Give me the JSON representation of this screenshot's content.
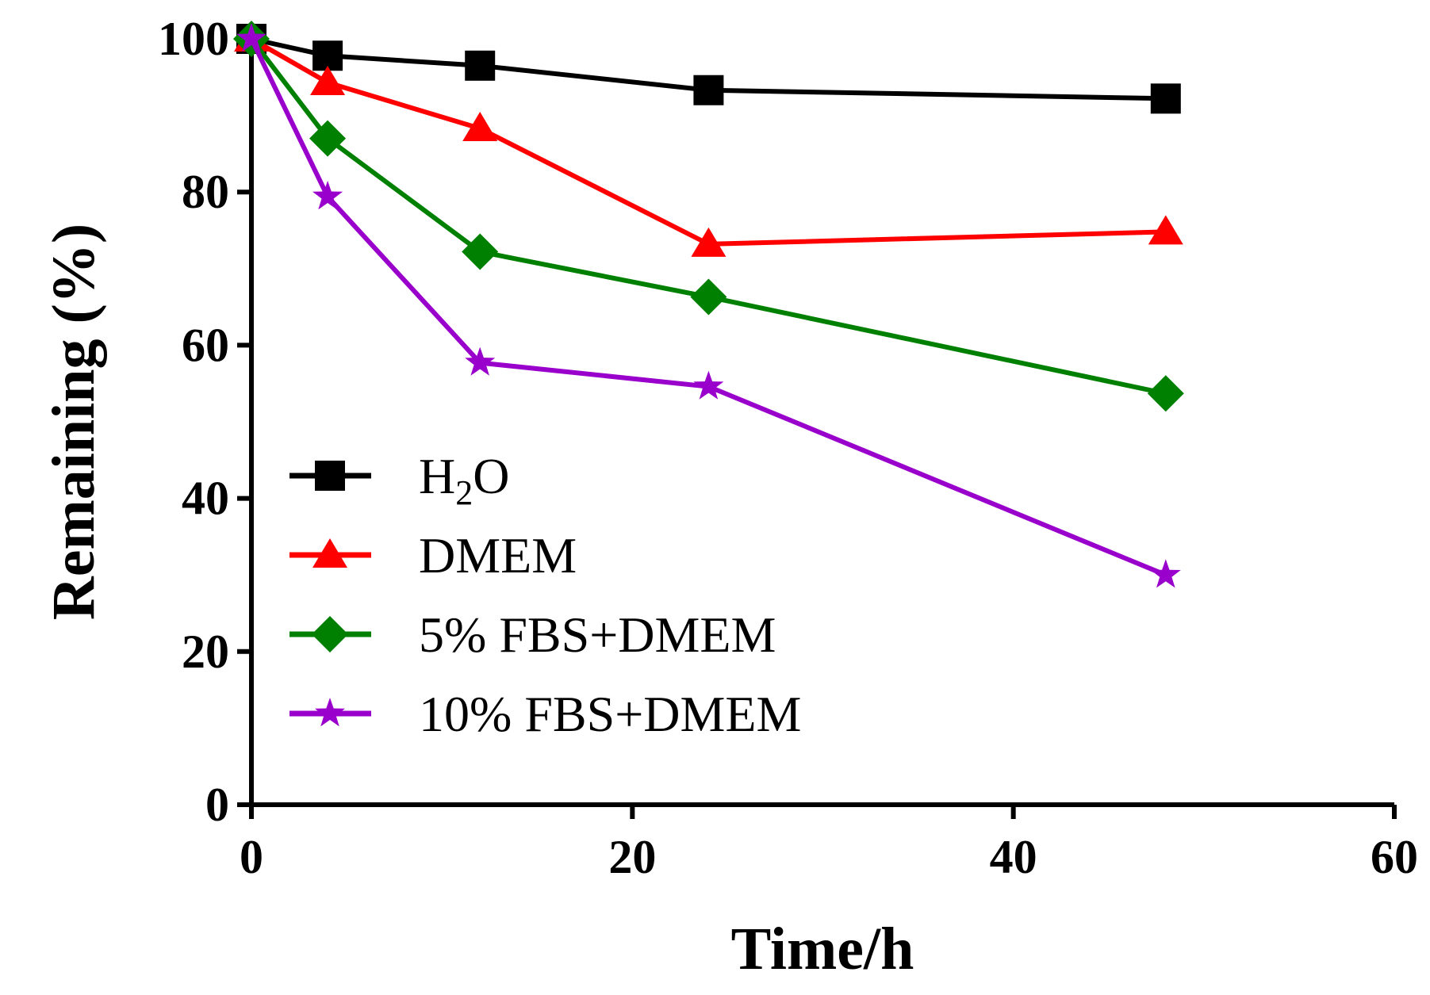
{
  "chart_data": {
    "type": "line",
    "title": "",
    "xlabel": "Time/h",
    "ylabel": "Remaining (%)",
    "xlim": [
      0,
      60
    ],
    "ylim": [
      0,
      100
    ],
    "xticks": [
      0,
      20,
      40,
      60
    ],
    "yticks": [
      0,
      20,
      40,
      60,
      80,
      100
    ],
    "grid": false,
    "legend_position": "center-left",
    "x": [
      0,
      4,
      12,
      24,
      48
    ],
    "series": [
      {
        "name": "H2O",
        "label_base": "H",
        "label_sub": "2",
        "label_rest": "O",
        "color": "#000000",
        "marker": "square",
        "values": [
          100,
          97.8,
          96.5,
          93.3,
          92.2
        ]
      },
      {
        "name": "DMEM",
        "color": "#ff0000",
        "marker": "triangle",
        "values": [
          100,
          94.3,
          88.3,
          73.2,
          74.8
        ]
      },
      {
        "name": "5% FBS+DMEM",
        "color": "#008000",
        "marker": "diamond",
        "values": [
          100,
          87.0,
          72.2,
          66.3,
          53.7
        ]
      },
      {
        "name": "10% FBS+DMEM",
        "color": "#9900cc",
        "marker": "star",
        "values": [
          100,
          79.4,
          57.7,
          54.6,
          30.0
        ]
      }
    ]
  }
}
